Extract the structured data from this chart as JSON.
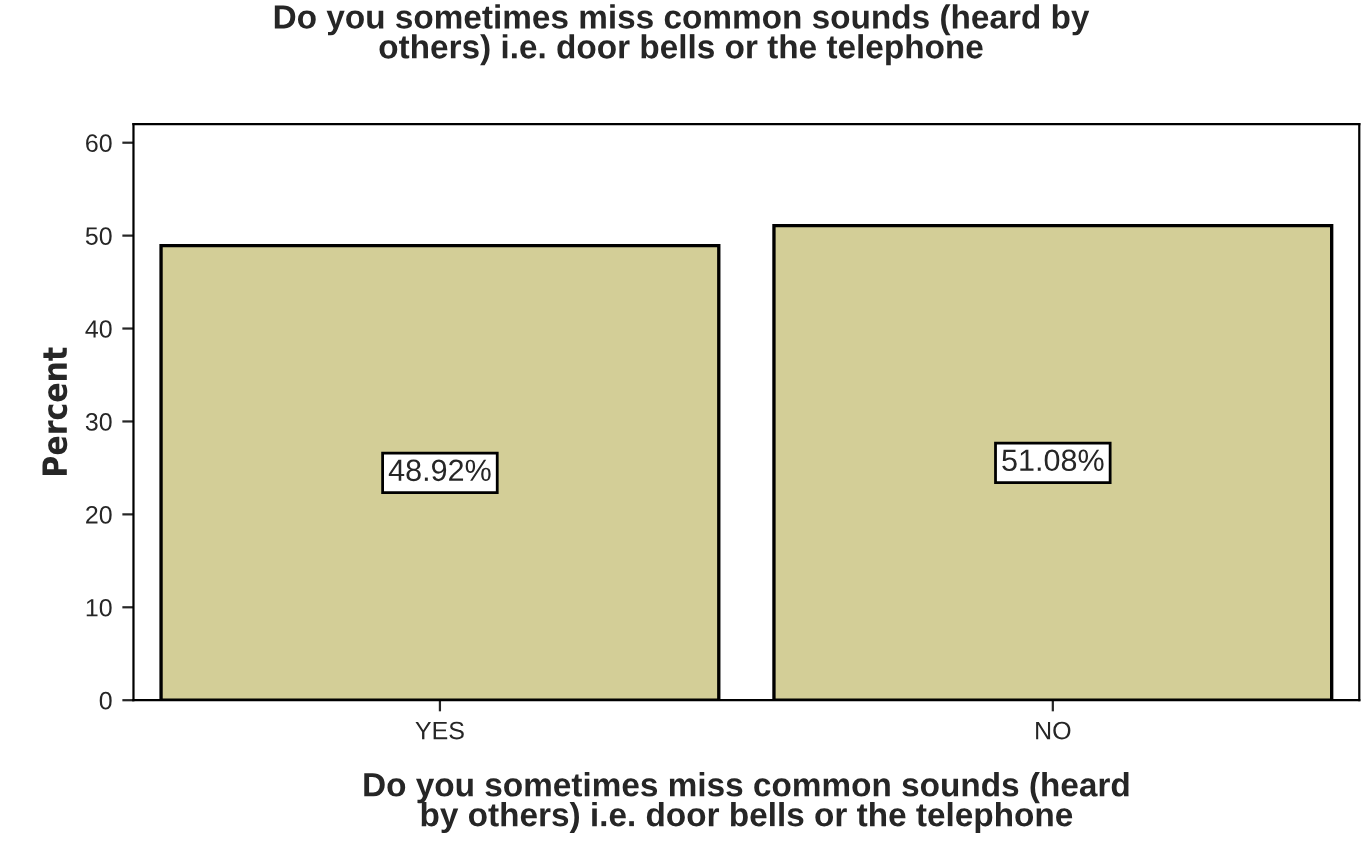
{
  "chart_data": {
    "type": "bar",
    "title": "Do you sometimes miss common sounds (heard by\nothers) i.e. door bells or the telephone",
    "xlabel": "Do you sometimes miss common sounds (heard\nby others) i.e. door bells or the telephone",
    "ylabel": "Percent",
    "categories": [
      "YES",
      "NO"
    ],
    "values": [
      48.92,
      51.08
    ],
    "color": "#d3ce97",
    "value_labels": [
      "48.92%",
      "51.08%"
    ],
    "ylim": [
      0,
      62
    ],
    "yticks": [
      0,
      10,
      20,
      30,
      40,
      50,
      60
    ],
    "grid": false
  }
}
